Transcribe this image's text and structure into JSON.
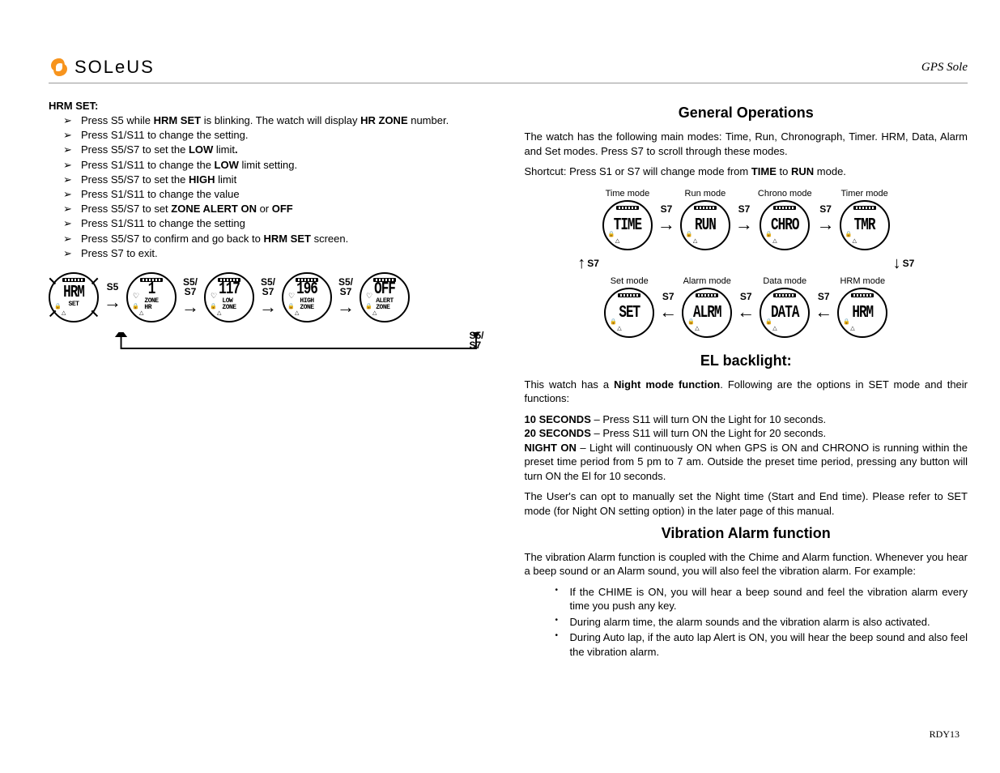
{
  "brand": {
    "name": "SOLeUS"
  },
  "header_right": "GPS Sole",
  "footer": "RDY13",
  "left": {
    "title": "HRM SET:",
    "steps": [
      [
        [
          "Press S5 while "
        ],
        [
          "b",
          "HRM SET"
        ],
        [
          " is blinking. The watch will display "
        ],
        [
          "b",
          "HR ZONE"
        ],
        [
          " number."
        ]
      ],
      [
        [
          "Press S1/S11 to change the setting."
        ]
      ],
      [
        [
          "Press S5/S7 to set the "
        ],
        [
          "b",
          "LOW"
        ],
        [
          " limit"
        ],
        [
          "b",
          "."
        ]
      ],
      [
        [
          "Press S1/S11 to change the "
        ],
        [
          "b",
          "LOW"
        ],
        [
          " limit setting."
        ]
      ],
      [
        [
          "Press S5/S7 to set the "
        ],
        [
          "b",
          "HIGH"
        ],
        [
          " limit"
        ]
      ],
      [
        [
          "Press S1/S11 to change the value"
        ]
      ],
      [
        [
          "Press S5/S7 to set "
        ],
        [
          "b",
          "ZONE ALERT ON "
        ],
        [
          "or"
        ],
        [
          "b",
          " OFF"
        ]
      ],
      [
        [
          "Press S1/S11 to change the setting"
        ]
      ],
      [
        [
          "Press S5/S7 to confirm and go back to "
        ],
        [
          "b",
          "HRM SET"
        ],
        [
          " screen."
        ]
      ],
      [
        [
          "Press S7 to exit."
        ]
      ]
    ],
    "flow": {
      "watches": [
        {
          "big": "HRM",
          "small": "SET",
          "ticked": true
        },
        {
          "big": "1",
          "small": "ZONE\nHR",
          "heart": true
        },
        {
          "big": "117",
          "small": "LOW\nZONE",
          "heart": true
        },
        {
          "big": "196",
          "small": "HIGH\nZONE",
          "heart": true
        },
        {
          "big": "OFF",
          "small": "ALERT\nZONE",
          "heart": true
        }
      ],
      "arrow_labels": [
        "S5",
        "S5/\nS7",
        "S5/\nS7",
        "S5/\nS7"
      ],
      "loop_label": "S5/\nS7"
    }
  },
  "right": {
    "genops": {
      "heading": "General Operations",
      "intro": "The watch has the following main modes: Time, Run, Chronograph, Timer. HRM, Data, Alarm and Set modes. Press S7 to scroll through these modes.",
      "shortcut_pre": "Shortcut:  Press S1 or S7 will change mode from ",
      "shortcut_b1": "TIME",
      "shortcut_mid": " to ",
      "shortcut_b2": "RUN",
      "shortcut_post": " mode.",
      "top": [
        {
          "label": "Time mode",
          "big": "TIME"
        },
        {
          "label": "Run mode",
          "big": "RUN"
        },
        {
          "label": "Chrono mode",
          "big": "CHRO"
        },
        {
          "label": "Timer mode",
          "big": "TMR"
        }
      ],
      "bottom": [
        {
          "label": "Set mode",
          "big": "SET"
        },
        {
          "label": "Alarm mode",
          "big": "ALRM"
        },
        {
          "label": "Data mode",
          "big": "DATA"
        },
        {
          "label": "HRM mode",
          "big": "HRM"
        }
      ],
      "arrow_label": "S7"
    },
    "el": {
      "heading": "EL backlight:",
      "intro_pre": "This watch has a ",
      "intro_b": "Night mode function",
      "intro_post": ". Following are the options in SET mode and their functions:",
      "l1_b": "10 SECONDS",
      "l1": " – Press S11 will turn ON the Light for 10 seconds.",
      "l2_b": "20 SECONDS",
      "l2": " – Press S11 will turn ON the Light for 20 seconds.",
      "l3_b": "NIGHT ON",
      "l3": " – Light will continuously ON when GPS is ON and CHRONO is running within the preset time period from 5 pm to 7 am. Outside the preset time period, pressing any button will turn ON the El for 10 seconds.",
      "outro": "The User's can opt to manually set the Night time (Start and End time). Please refer to SET mode (for Night ON setting option) in the later page of this manual."
    },
    "vib": {
      "heading": "Vibration Alarm function",
      "intro": "The vibration Alarm function is coupled with the Chime and Alarm function. Whenever you hear a beep sound or an Alarm sound, you will also feel the vibration alarm. For example:",
      "items": [
        "If the CHIME is ON, you will hear a beep sound and feel the vibration alarm every time you push any key.",
        "During alarm time, the alarm sounds and the vibration alarm is also activated.",
        "During Auto lap, if the auto lap Alert is ON, you will hear the beep sound and also feel the vibration alarm."
      ]
    }
  },
  "colors": {
    "text": "#000000",
    "bg": "#ffffff",
    "rule": "#999999",
    "logo_accent": "#f7941d"
  }
}
